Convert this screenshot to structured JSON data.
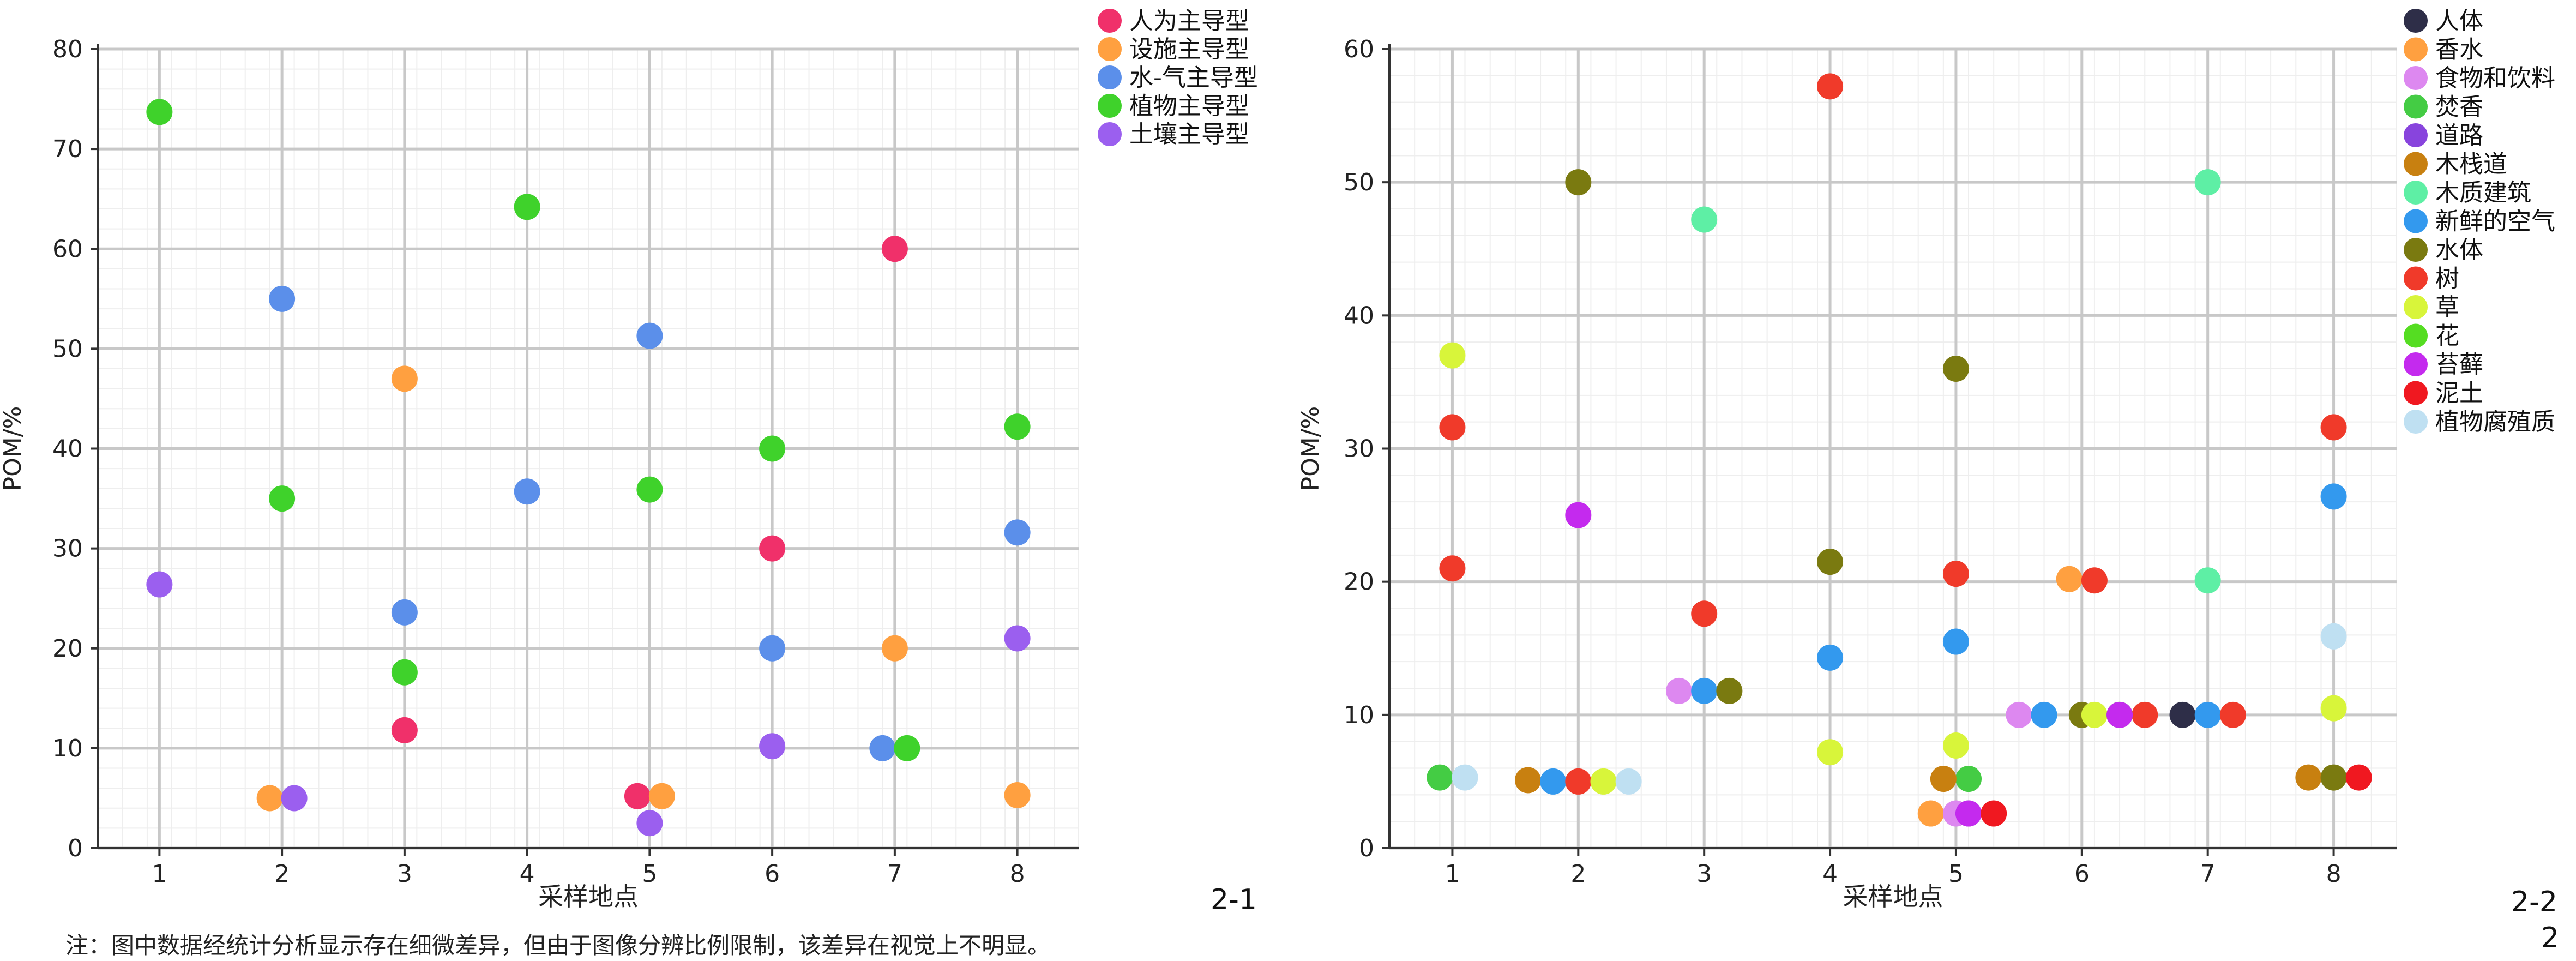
{
  "note": "注：图中数据经统计分析显示存在细微差异，但由于图像分辨比例限制，该差异在视觉上不明显。",
  "panel_labels": [
    "2-1",
    "2-2",
    "2"
  ],
  "chart_data": [
    {
      "type": "scatter",
      "id": "2-1",
      "xlabel": "采样地点",
      "ylabel": "POM/%",
      "xticks": [
        1,
        2,
        3,
        4,
        5,
        6,
        7,
        8
      ],
      "xlim": [
        0.5,
        8.5
      ],
      "ylim": [
        0,
        80
      ],
      "yticks": [
        0,
        10,
        20,
        30,
        40,
        50,
        60,
        70,
        80
      ],
      "grid": true,
      "legend_position": "top-right",
      "series": [
        {
          "name": "人为主导型",
          "color": "#F0306A",
          "points": [
            [
              3,
              11.8
            ],
            [
              4.9,
              5.2
            ],
            [
              6,
              30
            ],
            [
              7,
              60
            ]
          ]
        },
        {
          "name": "设施主导型",
          "color": "#FFA040",
          "points": [
            [
              1.9,
              5
            ],
            [
              3,
              47
            ],
            [
              5.1,
              5.2
            ],
            [
              7,
              20
            ],
            [
              8,
              5.3
            ]
          ]
        },
        {
          "name": "水-气主导型",
          "color": "#5B8FEA",
          "points": [
            [
              2,
              55
            ],
            [
              3,
              23.6
            ],
            [
              4,
              35.7
            ],
            [
              5,
              51.3
            ],
            [
              6,
              20
            ],
            [
              6.9,
              10
            ],
            [
              8,
              31.6
            ]
          ]
        },
        {
          "name": "植物主导型",
          "color": "#3FD22B",
          "points": [
            [
              1,
              73.7
            ],
            [
              2,
              35
            ],
            [
              3,
              17.6
            ],
            [
              4,
              64.2
            ],
            [
              5,
              35.9
            ],
            [
              6,
              40
            ],
            [
              7.1,
              10
            ],
            [
              8,
              42.2
            ]
          ]
        },
        {
          "name": "土壤主导型",
          "color": "#9B5FEF",
          "points": [
            [
              1,
              26.4
            ],
            [
              2.1,
              5
            ],
            [
              5,
              2.5
            ],
            [
              6,
              10.2
            ],
            [
              8,
              21
            ]
          ]
        }
      ]
    },
    {
      "type": "scatter",
      "id": "2-2",
      "xlabel": "采样地点",
      "ylabel": "POM/%",
      "xticks": [
        1,
        2,
        3,
        4,
        5,
        6,
        7,
        8
      ],
      "xlim": [
        0.5,
        8.5
      ],
      "ylim": [
        0,
        60
      ],
      "yticks": [
        0,
        10,
        20,
        30,
        40,
        50,
        60
      ],
      "grid": true,
      "legend_position": "top-right",
      "series": [
        {
          "name": "人体",
          "color": "#2E2E48",
          "points": [
            [
              6.8,
              10
            ]
          ]
        },
        {
          "name": "香水",
          "color": "#FFA040",
          "points": [
            [
              4.8,
              2.6
            ],
            [
              5.9,
              20.2
            ]
          ]
        },
        {
          "name": "食物和饮料",
          "color": "#DD88F0",
          "points": [
            [
              2.8,
              11.8
            ],
            [
              5,
              2.6
            ],
            [
              5.5,
              10
            ]
          ]
        },
        {
          "name": "焚香",
          "color": "#44CC44",
          "points": [
            [
              0.9,
              5.3
            ],
            [
              5.1,
              5.2
            ]
          ]
        },
        {
          "name": "道路",
          "color": "#8844DD",
          "points": [
            [
              5.1,
              2.6
            ]
          ]
        },
        {
          "name": "木栈道",
          "color": "#C88010",
          "points": [
            [
              1.6,
              5.1
            ],
            [
              4.9,
              5.2
            ],
            [
              7.8,
              5.3
            ]
          ]
        },
        {
          "name": "木质建筑",
          "color": "#5EEFA5",
          "points": [
            [
              3,
              47.2
            ],
            [
              7,
              50
            ],
            [
              7,
              20.1
            ]
          ]
        },
        {
          "name": "新鲜的空气",
          "color": "#3399EE",
          "points": [
            [
              1.8,
              5
            ],
            [
              3,
              11.8
            ],
            [
              4,
              14.3
            ],
            [
              5,
              15.5
            ],
            [
              5.7,
              10
            ],
            [
              7,
              10
            ],
            [
              8,
              26.4
            ]
          ]
        },
        {
          "name": "水体",
          "color": "#7A7A10",
          "points": [
            [
              2,
              50
            ],
            [
              3.2,
              11.8
            ],
            [
              4,
              21.5
            ],
            [
              5,
              36
            ],
            [
              6,
              10
            ],
            [
              8,
              5.3
            ]
          ]
        },
        {
          "name": "树",
          "color": "#F03A2A",
          "points": [
            [
              1,
              31.6
            ],
            [
              1,
              21
            ],
            [
              2,
              5
            ],
            [
              3,
              17.6
            ],
            [
              4,
              57.2
            ],
            [
              5,
              20.6
            ],
            [
              6.1,
              20.1
            ],
            [
              6.5,
              10
            ],
            [
              7.2,
              10
            ],
            [
              8,
              31.6
            ]
          ]
        },
        {
          "name": "草",
          "color": "#D8F53A",
          "points": [
            [
              1,
              37
            ],
            [
              2.2,
              5
            ],
            [
              4,
              7.2
            ],
            [
              5,
              7.7
            ],
            [
              6.1,
              10
            ],
            [
              8,
              10.5
            ]
          ]
        },
        {
          "name": "花",
          "color": "#55DD22",
          "points": [
            [
              6.3,
              10
            ]
          ]
        },
        {
          "name": "苔藓",
          "color": "#C42AEE",
          "points": [
            [
              2,
              25
            ],
            [
              5.1,
              2.6
            ],
            [
              6.3,
              10
            ]
          ]
        },
        {
          "name": "泥土",
          "color": "#F01820",
          "points": [
            [
              5.3,
              2.6
            ],
            [
              8.2,
              5.3
            ]
          ]
        },
        {
          "name": "植物腐殖质",
          "color": "#BFE0F2",
          "points": [
            [
              1.1,
              5.3
            ],
            [
              2.4,
              5
            ],
            [
              8,
              15.9
            ]
          ]
        }
      ]
    }
  ]
}
